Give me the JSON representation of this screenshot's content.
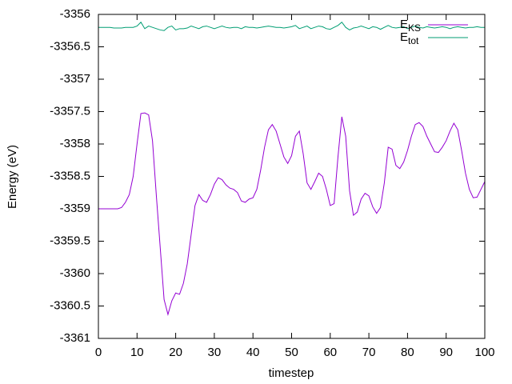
{
  "chart_data": {
    "type": "line",
    "xlabel": "timestep",
    "ylabel": "Energy (eV)",
    "xlim": [
      0,
      100
    ],
    "ylim": [
      -3361,
      -3356
    ],
    "xticks": [
      0,
      10,
      20,
      30,
      40,
      50,
      60,
      70,
      80,
      90,
      100
    ],
    "yticks": [
      -3356,
      -3356.5,
      -3357,
      -3357.5,
      -3358,
      -3358.5,
      -3359,
      -3359.5,
      -3360,
      -3360.5,
      -3361
    ],
    "legend": "top-right",
    "x": [
      0,
      1,
      2,
      3,
      4,
      5,
      6,
      7,
      8,
      9,
      10,
      11,
      12,
      13,
      14,
      15,
      16,
      17,
      18,
      19,
      20,
      21,
      22,
      23,
      24,
      25,
      26,
      27,
      28,
      29,
      30,
      31,
      32,
      33,
      34,
      35,
      36,
      37,
      38,
      39,
      40,
      41,
      42,
      43,
      44,
      45,
      46,
      47,
      48,
      49,
      50,
      51,
      52,
      53,
      54,
      55,
      56,
      57,
      58,
      59,
      60,
      61,
      62,
      63,
      64,
      65,
      66,
      67,
      68,
      69,
      70,
      71,
      72,
      73,
      74,
      75,
      76,
      77,
      78,
      79,
      80,
      81,
      82,
      83,
      84,
      85,
      86,
      87,
      88,
      89,
      90,
      91,
      92,
      93,
      94,
      95,
      96,
      97,
      98,
      99,
      100
    ],
    "series": [
      {
        "name": "EKS",
        "color": "#9400d3",
        "values": [
          -3359.0,
          -3359.0,
          -3359.0,
          -3359.0,
          -3359.0,
          -3359.0,
          -3358.98,
          -3358.9,
          -3358.78,
          -3358.5,
          -3358.0,
          -3357.53,
          -3357.52,
          -3357.55,
          -3357.95,
          -3358.8,
          -3359.6,
          -3360.4,
          -3360.63,
          -3360.42,
          -3360.3,
          -3360.32,
          -3360.15,
          -3359.85,
          -3359.4,
          -3358.95,
          -3358.78,
          -3358.87,
          -3358.9,
          -3358.78,
          -3358.62,
          -3358.52,
          -3358.55,
          -3358.63,
          -3358.68,
          -3358.7,
          -3358.75,
          -3358.88,
          -3358.9,
          -3358.85,
          -3358.83,
          -3358.7,
          -3358.4,
          -3358.05,
          -3357.78,
          -3357.7,
          -3357.8,
          -3358.0,
          -3358.2,
          -3358.3,
          -3358.18,
          -3357.88,
          -3357.8,
          -3358.15,
          -3358.6,
          -3358.7,
          -3358.58,
          -3358.45,
          -3358.5,
          -3358.7,
          -3358.95,
          -3358.92,
          -3358.2,
          -3357.58,
          -3357.88,
          -3358.72,
          -3359.1,
          -3359.05,
          -3358.85,
          -3358.76,
          -3358.8,
          -3358.97,
          -3359.07,
          -3358.98,
          -3358.6,
          -3358.05,
          -3358.08,
          -3358.33,
          -3358.38,
          -3358.28,
          -3358.1,
          -3357.88,
          -3357.7,
          -3357.67,
          -3357.73,
          -3357.88,
          -3358.0,
          -3358.12,
          -3358.13,
          -3358.05,
          -3357.95,
          -3357.8,
          -3357.68,
          -3357.78,
          -3358.1,
          -3358.45,
          -3358.7,
          -3358.83,
          -3358.82,
          -3358.7,
          -3358.58
        ]
      },
      {
        "name": "Etot",
        "color": "#009e73",
        "values": [
          -3356.2,
          -3356.2,
          -3356.2,
          -3356.2,
          -3356.21,
          -3356.21,
          -3356.21,
          -3356.2,
          -3356.2,
          -3356.2,
          -3356.18,
          -3356.12,
          -3356.22,
          -3356.18,
          -3356.2,
          -3356.22,
          -3356.24,
          -3356.25,
          -3356.2,
          -3356.18,
          -3356.24,
          -3356.22,
          -3356.22,
          -3356.21,
          -3356.18,
          -3356.2,
          -3356.22,
          -3356.19,
          -3356.18,
          -3356.2,
          -3356.22,
          -3356.2,
          -3356.18,
          -3356.2,
          -3356.21,
          -3356.2,
          -3356.2,
          -3356.22,
          -3356.19,
          -3356.2,
          -3356.2,
          -3356.21,
          -3356.2,
          -3356.19,
          -3356.18,
          -3356.19,
          -3356.2,
          -3356.2,
          -3356.21,
          -3356.2,
          -3356.19,
          -3356.17,
          -3356.22,
          -3356.2,
          -3356.18,
          -3356.22,
          -3356.2,
          -3356.18,
          -3356.19,
          -3356.22,
          -3356.23,
          -3356.2,
          -3356.17,
          -3356.12,
          -3356.2,
          -3356.24,
          -3356.21,
          -3356.2,
          -3356.18,
          -3356.2,
          -3356.22,
          -3356.19,
          -3356.2,
          -3356.23,
          -3356.2,
          -3356.17,
          -3356.2,
          -3356.21,
          -3356.2,
          -3356.19,
          -3356.22,
          -3356.2,
          -3356.18,
          -3356.2,
          -3356.21,
          -3356.19,
          -3356.2,
          -3356.21,
          -3356.2,
          -3356.19,
          -3356.2,
          -3356.22,
          -3356.2,
          -3356.19,
          -3356.2,
          -3356.21,
          -3356.2,
          -3356.2,
          -3356.19,
          -3356.2,
          -3356.2
        ]
      }
    ]
  }
}
